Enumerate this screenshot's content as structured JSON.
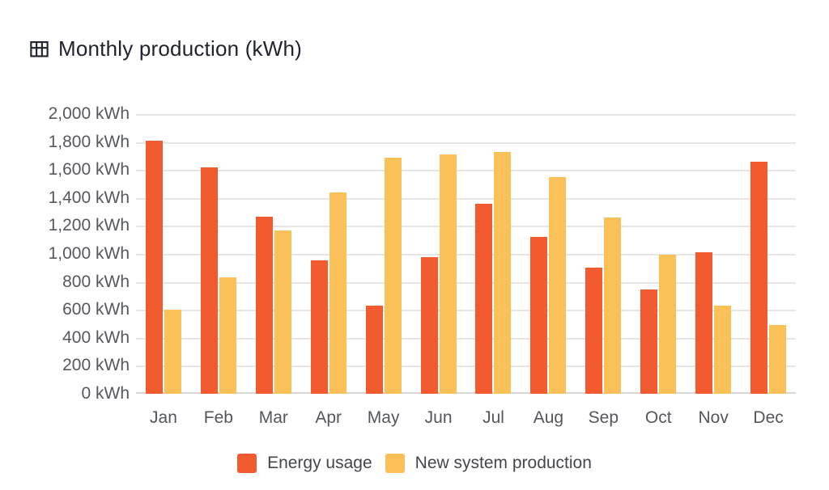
{
  "title": "Monthly production (kWh)",
  "colors": {
    "energy_usage": "#F25B30",
    "new_system_production": "#F9C157",
    "gridline": "#E6E6E6",
    "baseline": "#D8D8D8",
    "axis_text": "#55585E",
    "title_text": "#21242E",
    "legend_text": "#43464B"
  },
  "y_axis": {
    "tick_labels": [
      "2,000 kWh",
      "1,800 kWh",
      "1,600 kWh",
      "1,400 kWh",
      "1,200 kWh",
      "1,000 kWh",
      "800 kWh",
      "600 kWh",
      "400 kWh",
      "200 kWh",
      "0 kWh"
    ],
    "min": 0,
    "max": 2000,
    "step": 200
  },
  "legend": [
    {
      "label": "Energy usage",
      "color": "#F25B30"
    },
    {
      "label": "New system production",
      "color": "#F9C157"
    }
  ],
  "chart_data": {
    "type": "bar",
    "title": "Monthly production (kWh)",
    "categories": [
      "Jan",
      "Feb",
      "Mar",
      "Apr",
      "May",
      "Jun",
      "Jul",
      "Aug",
      "Sep",
      "Oct",
      "Nov",
      "Dec"
    ],
    "series": [
      {
        "name": "Energy usage",
        "color": "#F25B30",
        "values": [
          1810,
          1620,
          1265,
          955,
          630,
          975,
          1360,
          1120,
          900,
          745,
          1010,
          1660
        ]
      },
      {
        "name": "New system production",
        "color": "#F9C157",
        "values": [
          600,
          830,
          1170,
          1440,
          1685,
          1710,
          1730,
          1550,
          1260,
          995,
          630,
          490
        ]
      }
    ],
    "xlabel": "",
    "ylabel": "",
    "unit": "kWh",
    "ylim": [
      0,
      2000
    ],
    "ytick_step": 200,
    "grid": true,
    "legend_position": "bottom"
  }
}
